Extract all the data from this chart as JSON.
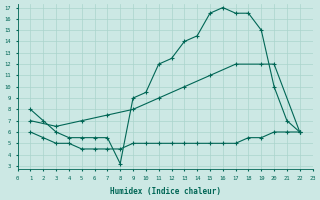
{
  "xlabel": "Humidex (Indice chaleur)",
  "bg_color": "#cce8e4",
  "grid_color": "#aad4cc",
  "line_color": "#006655",
  "xlim": [
    0,
    23
  ],
  "ylim": [
    3,
    17
  ],
  "xticks": [
    0,
    1,
    2,
    3,
    4,
    5,
    6,
    7,
    8,
    9,
    10,
    11,
    12,
    13,
    14,
    15,
    16,
    17,
    18,
    19,
    20,
    21,
    22,
    23
  ],
  "yticks": [
    3,
    4,
    5,
    6,
    7,
    8,
    9,
    10,
    11,
    12,
    13,
    14,
    15,
    16,
    17
  ],
  "line1_x": [
    1,
    2,
    3,
    4,
    5,
    6,
    7,
    8,
    9,
    10,
    11,
    12,
    13,
    14,
    15,
    16,
    17,
    18,
    19,
    20,
    21,
    22
  ],
  "line1_y": [
    8,
    7,
    6,
    5.5,
    5.5,
    5.5,
    5.5,
    3.2,
    9,
    9.5,
    12,
    12.5,
    14,
    14.5,
    16.5,
    17,
    16.5,
    16.5,
    15,
    10,
    7,
    6
  ],
  "line2_x": [
    1,
    3,
    5,
    7,
    9,
    11,
    13,
    15,
    17,
    19,
    20,
    22
  ],
  "line2_y": [
    7,
    6.5,
    7,
    7.5,
    8,
    9,
    10,
    11,
    12,
    12,
    12,
    6
  ],
  "line3_x": [
    1,
    2,
    3,
    4,
    5,
    6,
    7,
    8,
    9,
    10,
    11,
    12,
    13,
    14,
    15,
    16,
    17,
    18,
    19,
    20,
    21,
    22
  ],
  "line3_y": [
    6,
    5.5,
    5,
    5,
    4.5,
    4.5,
    4.5,
    4.5,
    5,
    5,
    5,
    5,
    5,
    5,
    5,
    5,
    5,
    5.5,
    5.5,
    6,
    6,
    6
  ]
}
